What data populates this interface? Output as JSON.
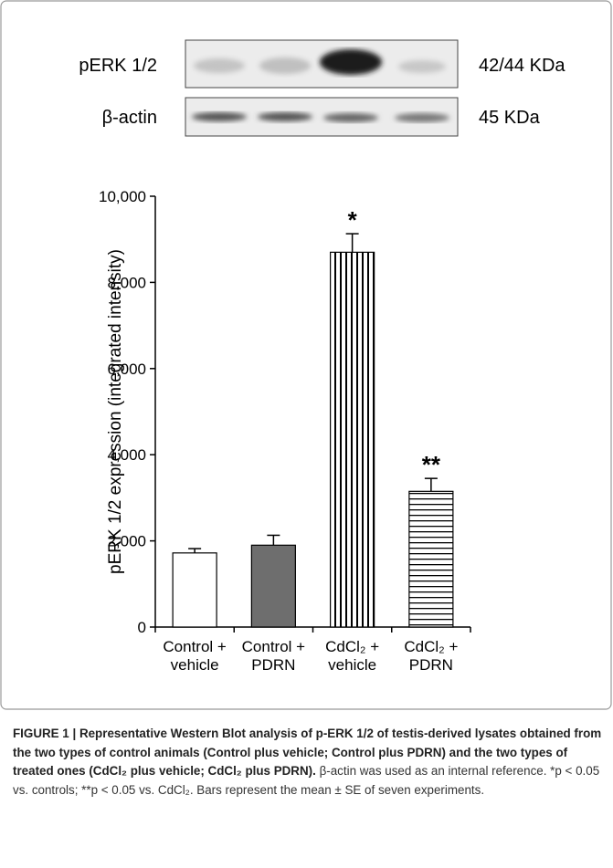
{
  "blot": {
    "rows": [
      {
        "label": "pERK 1/2",
        "size": "42/44 KDa"
      },
      {
        "label": "β-actin",
        "size": "45 KDa"
      }
    ]
  },
  "chart_data": {
    "type": "bar",
    "ylabel": "pERK 1/2 expression (integrated intensity)",
    "categories": [
      "Control +\nvehicle",
      "Control +\nPDRN",
      "CdCl₂ +\nvehicle",
      "CdCl₂ +\nPDRN"
    ],
    "values": [
      1720,
      1900,
      8700,
      3150
    ],
    "errors": [
      100,
      230,
      430,
      300
    ],
    "annotations": [
      null,
      null,
      "*",
      "**"
    ],
    "bar_fills": [
      "#ffffff",
      "#6e6e6e",
      "vertical-stripes",
      "horizontal-stripes"
    ],
    "ylim": [
      0,
      10000
    ],
    "yticks": [
      0,
      {
        "value": 2000,
        "label": "2,000"
      },
      {
        "value": 4000,
        "label": "4,000"
      },
      {
        "value": 6000,
        "label": "6,000"
      },
      {
        "value": 8000,
        "label": "8,000"
      },
      {
        "value": 10000,
        "label": "10,000"
      }
    ]
  },
  "caption": {
    "bold": "FIGURE 1 | Representative Western Blot analysis of p-ERK 1/2 of testis-derived lysates obtained from the two types of control animals (Control plus vehicle; Control plus PDRN) and the two types of treated ones (CdCl₂ plus vehicle; CdCl₂ plus PDRN).",
    "text": "β-actin was used as an internal reference. *p < 0.05 vs. controls; **p < 0.05 vs. CdCl₂. Bars represent the mean ± SE of seven experiments."
  }
}
